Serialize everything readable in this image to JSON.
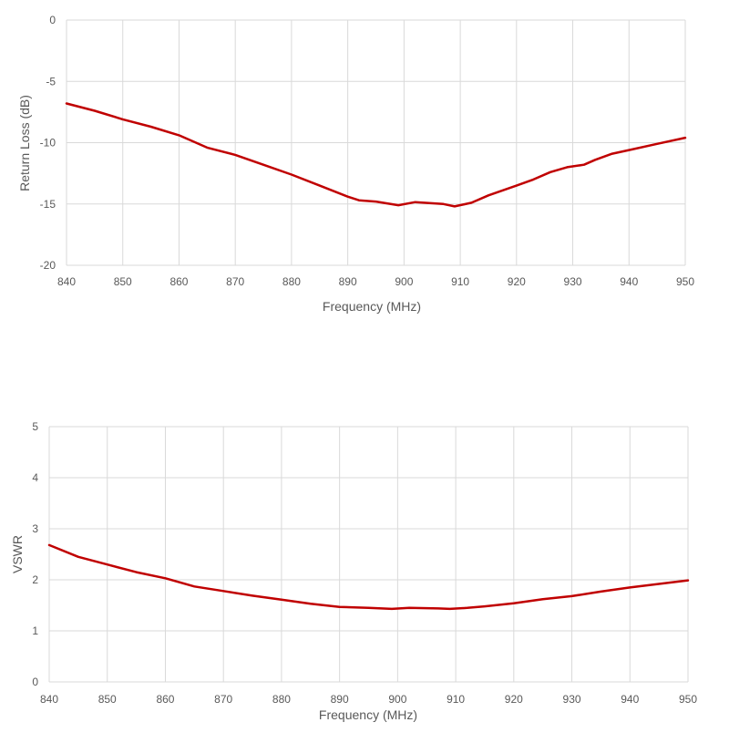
{
  "charts": [
    {
      "id": "return-loss",
      "xlabel": "Frequency (MHz)",
      "ylabel": "Return Loss (dB)",
      "x_ticks": [
        "840",
        "850",
        "860",
        "870",
        "880",
        "890",
        "900",
        "910",
        "920",
        "930",
        "940",
        "950"
      ],
      "y_ticks": [
        "0",
        "-5",
        "-10",
        "-15",
        "-20"
      ]
    },
    {
      "id": "vswr",
      "xlabel": "Frequency (MHz)",
      "ylabel": "VSWR",
      "x_ticks": [
        "840",
        "850",
        "860",
        "870",
        "880",
        "890",
        "900",
        "910",
        "920",
        "930",
        "940",
        "950"
      ],
      "y_ticks": [
        "5",
        "4",
        "3",
        "2",
        "1",
        "0"
      ]
    }
  ],
  "colors": {
    "line": "#C00000",
    "grid": "#D9D9D9",
    "text": "#595959"
  },
  "chart_data": [
    {
      "type": "line",
      "title": "",
      "xlabel": "Frequency (MHz)",
      "ylabel": "Return Loss (dB)",
      "xlim": [
        840,
        950
      ],
      "ylim": [
        -20,
        0
      ],
      "grid": true,
      "legend": "none",
      "x": [
        840,
        845,
        850,
        855,
        860,
        865,
        870,
        875,
        880,
        885,
        890,
        892,
        895,
        899,
        902,
        907,
        909,
        912,
        915,
        920,
        923,
        926,
        929,
        932,
        934,
        937,
        940,
        945,
        950
      ],
      "series": [
        {
          "name": "Return Loss",
          "values": [
            -6.8,
            -7.4,
            -8.1,
            -8.7,
            -9.4,
            -10.4,
            -11.0,
            -11.8,
            -12.6,
            -13.5,
            -14.4,
            -14.7,
            -14.8,
            -15.1,
            -14.85,
            -15.0,
            -15.2,
            -14.9,
            -14.3,
            -13.5,
            -13.0,
            -12.4,
            -12.0,
            -11.8,
            -11.4,
            -10.9,
            -10.6,
            -10.1,
            -9.6
          ]
        }
      ]
    },
    {
      "type": "line",
      "title": "",
      "xlabel": "Frequency (MHz)",
      "ylabel": "VSWR",
      "xlim": [
        840,
        950
      ],
      "ylim": [
        0,
        5
      ],
      "grid": true,
      "legend": "none",
      "x": [
        840,
        845,
        850,
        855,
        860,
        865,
        870,
        875,
        880,
        885,
        890,
        895,
        899,
        902,
        907,
        909,
        912,
        915,
        920,
        925,
        930,
        935,
        940,
        945,
        950
      ],
      "series": [
        {
          "name": "VSWR",
          "values": [
            2.68,
            2.45,
            2.3,
            2.15,
            2.03,
            1.87,
            1.78,
            1.69,
            1.61,
            1.53,
            1.47,
            1.45,
            1.43,
            1.45,
            1.44,
            1.43,
            1.45,
            1.48,
            1.54,
            1.62,
            1.68,
            1.77,
            1.85,
            1.92,
            1.99
          ]
        }
      ]
    }
  ]
}
